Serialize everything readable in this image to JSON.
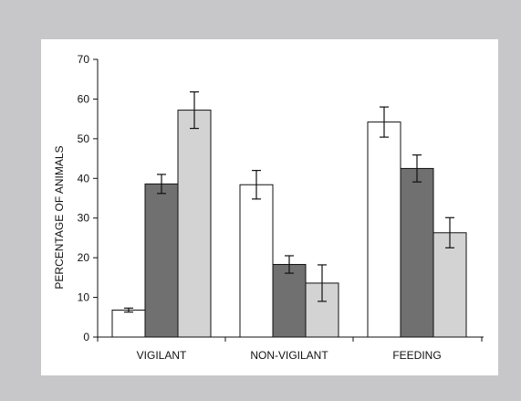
{
  "colors": {
    "background": "#c7c7c9",
    "panel": "#ffffff",
    "series_fills": [
      "#ffffff",
      "#707070",
      "#d3d3d3"
    ],
    "stroke": "#111111"
  },
  "chart_data": {
    "type": "bar",
    "title": "",
    "xlabel": "",
    "ylabel": "PERCENTAGE OF ANIMALS",
    "ylim": [
      0,
      70
    ],
    "yticks": [
      0,
      10,
      20,
      30,
      40,
      50,
      60,
      70
    ],
    "categories": [
      "VIGILANT",
      "NON-VIGILANT",
      "FEEDING"
    ],
    "series": [
      {
        "values": [
          6.8,
          38.4,
          54.2
        ],
        "errors": [
          0.5,
          3.6,
          3.8
        ]
      },
      {
        "values": [
          38.6,
          18.3,
          42.5
        ],
        "errors": [
          2.4,
          2.2,
          3.4
        ]
      },
      {
        "values": [
          57.2,
          13.6,
          26.3
        ],
        "errors": [
          4.6,
          4.6,
          3.8
        ]
      }
    ],
    "grid": false,
    "legend": "none"
  }
}
